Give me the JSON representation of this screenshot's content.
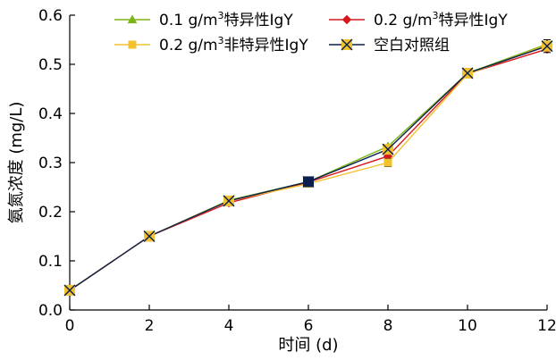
{
  "chart_data": {
    "type": "line",
    "title": "",
    "xlabel": "时间 (d)",
    "ylabel": "氨氮浓度 (mg/L)",
    "xlim": [
      0,
      12
    ],
    "ylim": [
      0.0,
      0.6
    ],
    "xticks": [
      0,
      2,
      4,
      6,
      8,
      10,
      12
    ],
    "yticks": [
      "0.0",
      "0.1",
      "0.2",
      "0.3",
      "0.4",
      "0.5",
      "0.6"
    ],
    "grid": false,
    "legend_position": "top",
    "x": [
      0,
      2,
      4,
      6,
      8,
      10,
      12
    ],
    "series": [
      {
        "name_parts": [
          "0.1 g/m",
          "3",
          "特异性IgY"
        ],
        "color": "#7cb518",
        "marker": "triangle",
        "values": [
          0.04,
          0.15,
          0.223,
          0.261,
          0.333,
          0.482,
          0.541
        ],
        "errors": [
          0,
          0,
          0,
          0,
          0,
          0,
          0
        ]
      },
      {
        "name_parts": [
          "0.2 g/m",
          "3",
          "特异性IgY"
        ],
        "color": "#d7191c",
        "marker": "diamond",
        "values": [
          0.04,
          0.15,
          0.218,
          0.26,
          0.313,
          0.481,
          0.531
        ],
        "errors": [
          0,
          0,
          0,
          0,
          0,
          0,
          0
        ]
      },
      {
        "name_parts": [
          "0.2 g/m",
          "3",
          "非特异性IgY"
        ],
        "color": "#f2c12e",
        "marker": "square",
        "values": [
          0.04,
          0.15,
          0.222,
          0.257,
          0.3,
          0.48,
          0.539
        ],
        "errors": [
          0,
          0,
          0,
          0,
          0.008,
          0,
          0
        ]
      },
      {
        "name_parts": [
          "空白对照组",
          "",
          ""
        ],
        "color": "#0b1f4f",
        "marker": "cross-box",
        "values": [
          0.04,
          0.15,
          0.222,
          0.261,
          0.327,
          0.482,
          0.537
        ],
        "errors": [
          0,
          0,
          0,
          0,
          0.008,
          0,
          0.013
        ]
      }
    ]
  }
}
